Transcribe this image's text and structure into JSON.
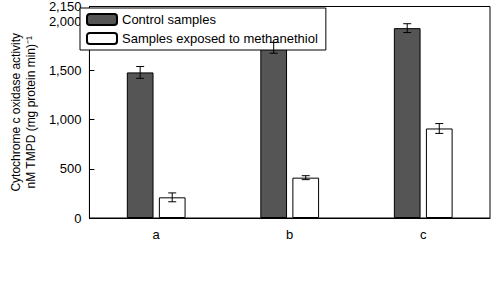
{
  "chart_data": {
    "type": "bar",
    "y_label": "Cytochrome c oxidase activity\nnM TMPD (mg protein min)⁻¹",
    "categories": [
      "a",
      "b",
      "c"
    ],
    "series": [
      {
        "name": "Control samples",
        "color": "#555555",
        "values": [
          1480,
          1730,
          1930
        ],
        "errors": [
          60,
          55,
          45
        ]
      },
      {
        "name": "Samples exposed to methanethiol",
        "color": "#ffffff",
        "values": [
          210,
          410,
          910
        ],
        "errors": [
          45,
          20,
          50
        ]
      }
    ],
    "ylim": [
      0,
      2150
    ],
    "yticks": [
      0,
      500,
      1000,
      1500,
      2000
    ],
    "grid": false,
    "legend": "upper left"
  }
}
